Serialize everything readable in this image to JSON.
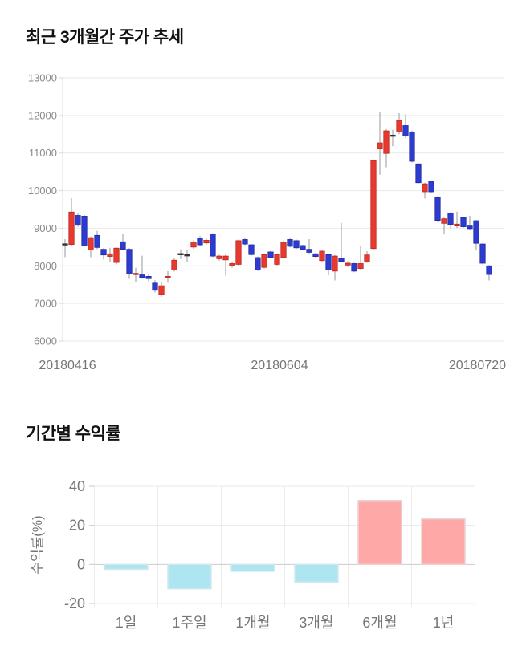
{
  "chart_data": [
    {
      "type": "candlestick",
      "title": "최근 3개월간 주가 추세",
      "ylim": [
        6000,
        13000
      ],
      "y_ticks": [
        13000,
        12000,
        11000,
        10000,
        9000,
        8000,
        7000,
        6000
      ],
      "x_labels": [
        "20180416",
        "20180604",
        "20180720"
      ],
      "grid": true,
      "up_color": "#e8392f",
      "up_border": "#b7271f",
      "down_color": "#2d3cd0",
      "down_border": "#1e28a0",
      "flat_color": "#333333",
      "wick_color": "#9a9a9a",
      "candles_format": [
        "open",
        "high",
        "low",
        "close"
      ],
      "candles": [
        [
          8570,
          8710,
          8230,
          8570
        ],
        [
          8570,
          9800,
          8530,
          9430
        ],
        [
          9340,
          9390,
          9040,
          9080
        ],
        [
          9320,
          9350,
          8520,
          8550
        ],
        [
          8420,
          8780,
          8230,
          8750
        ],
        [
          8810,
          8930,
          8440,
          8490
        ],
        [
          8440,
          8470,
          8170,
          8290
        ],
        [
          8250,
          8480,
          8100,
          8320
        ],
        [
          8090,
          8500,
          8040,
          8470
        ],
        [
          8640,
          8860,
          8420,
          8440
        ],
        [
          8440,
          8470,
          7650,
          7790
        ],
        [
          7770,
          7950,
          7580,
          7800
        ],
        [
          7760,
          8270,
          7660,
          7690
        ],
        [
          7720,
          7790,
          7590,
          7660
        ],
        [
          7540,
          7620,
          7290,
          7350
        ],
        [
          7240,
          7570,
          7180,
          7470
        ],
        [
          7700,
          7860,
          7550,
          7720
        ],
        [
          7890,
          8200,
          7850,
          8150
        ],
        [
          8310,
          8440,
          8180,
          8310
        ],
        [
          8280,
          8420,
          8100,
          8280
        ],
        [
          8500,
          8680,
          8450,
          8630
        ],
        [
          8740,
          8790,
          8520,
          8560
        ],
        [
          8610,
          8730,
          8570,
          8680
        ],
        [
          8850,
          8870,
          8230,
          8260
        ],
        [
          8190,
          8300,
          8140,
          8260
        ],
        [
          8160,
          8300,
          7740,
          8260
        ],
        [
          8000,
          8100,
          7950,
          8060
        ],
        [
          8040,
          8700,
          8000,
          8670
        ],
        [
          8700,
          8750,
          8550,
          8580
        ],
        [
          8560,
          8580,
          8270,
          8300
        ],
        [
          8220,
          8250,
          7860,
          7890
        ],
        [
          7960,
          8330,
          7930,
          8300
        ],
        [
          8370,
          8400,
          8200,
          8220
        ],
        [
          8040,
          8330,
          8000,
          8300
        ],
        [
          8220,
          8670,
          8200,
          8630
        ],
        [
          8700,
          8740,
          8490,
          8520
        ],
        [
          8670,
          8700,
          8450,
          8480
        ],
        [
          8540,
          8560,
          8420,
          8440
        ],
        [
          8440,
          8710,
          8330,
          8360
        ],
        [
          8320,
          8350,
          8220,
          8250
        ],
        [
          8140,
          8420,
          8120,
          8390
        ],
        [
          8300,
          8320,
          7750,
          7890
        ],
        [
          7860,
          8290,
          7610,
          8260
        ],
        [
          8200,
          9140,
          8100,
          8120
        ],
        [
          8020,
          8120,
          7970,
          8070
        ],
        [
          8060,
          8080,
          7830,
          7860
        ],
        [
          7930,
          8540,
          7900,
          8060
        ],
        [
          8110,
          8390,
          8080,
          8290
        ],
        [
          8460,
          10830,
          8430,
          10800
        ],
        [
          11110,
          12100,
          10420,
          11270
        ],
        [
          10990,
          11640,
          10620,
          11590
        ],
        [
          11460,
          11620,
          11180,
          11460
        ],
        [
          11560,
          12060,
          11500,
          11870
        ],
        [
          11730,
          12030,
          11400,
          11450
        ],
        [
          11560,
          11600,
          10750,
          10780
        ],
        [
          10710,
          10730,
          10190,
          10210
        ],
        [
          9970,
          10210,
          9790,
          10180
        ],
        [
          10250,
          10270,
          9940,
          9970
        ],
        [
          9820,
          9850,
          9160,
          9210
        ],
        [
          9130,
          9280,
          8850,
          9250
        ],
        [
          9400,
          9430,
          9000,
          9100
        ],
        [
          9060,
          9440,
          9010,
          9110
        ],
        [
          9290,
          9310,
          9010,
          9040
        ],
        [
          9060,
          9330,
          8960,
          8990
        ],
        [
          9200,
          9220,
          8420,
          8600
        ],
        [
          8580,
          8600,
          8040,
          8070
        ],
        [
          8000,
          8020,
          7610,
          7770
        ]
      ]
    },
    {
      "type": "bar",
      "title": "기간별 수익률",
      "ylabel": "수익률(%)",
      "categories": [
        "1일",
        "1주일",
        "1개월",
        "3개월",
        "6개월",
        "1년"
      ],
      "values": [
        -2.5,
        -12.5,
        -3.5,
        -9,
        32.7,
        23.3
      ],
      "ylim": [
        -20,
        40
      ],
      "y_ticks": [
        40,
        20,
        0,
        -20
      ],
      "grid": true,
      "positive_color": "#ffa8a8",
      "positive_border": "#ecd3d3",
      "negative_color": "#ade5f0",
      "negative_border": "#d2e8ee"
    }
  ]
}
